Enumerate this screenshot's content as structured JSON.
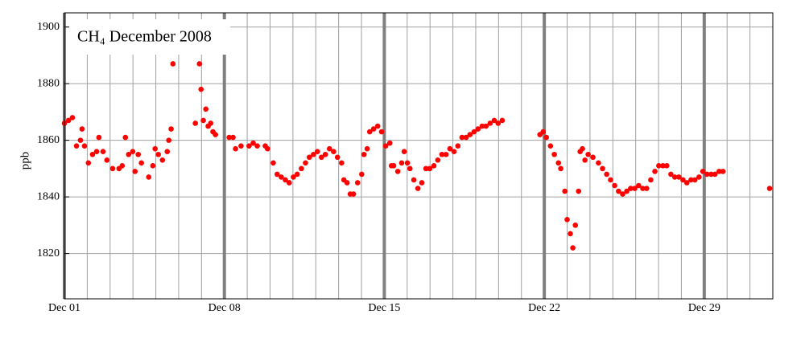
{
  "chart_data": {
    "type": "scatter",
    "title": "CH₄ December 2008",
    "ylabel": "ppb",
    "color": "#ff0000",
    "grid": true,
    "xlim": [
      1,
      32
    ],
    "xticks": [
      {
        "value": 1,
        "label": "Dec 01"
      },
      {
        "value": 8,
        "label": "Dec 08"
      },
      {
        "value": 15,
        "label": "Dec 15"
      },
      {
        "value": 22,
        "label": "Dec 22"
      },
      {
        "value": 29,
        "label": "Dec 29"
      }
    ],
    "ylim": [
      1804,
      1905
    ],
    "yticks": [
      1820,
      1840,
      1860,
      1880,
      1900
    ],
    "x": [
      1.0,
      1.18,
      1.35,
      1.53,
      1.7,
      1.77,
      1.88,
      2.05,
      2.23,
      2.41,
      2.51,
      2.69,
      2.86,
      3.11,
      3.39,
      3.53,
      3.67,
      3.81,
      3.99,
      4.09,
      4.23,
      4.37,
      4.69,
      4.87,
      4.97,
      5.11,
      5.29,
      5.5,
      5.57,
      5.67,
      5.75,
      6.73,
      6.91,
      6.98,
      7.08,
      7.19,
      7.29,
      7.4,
      7.5,
      7.61,
      8.21,
      8.38,
      8.49,
      8.73,
      9.08,
      9.26,
      9.44,
      9.79,
      9.89,
      10.14,
      10.31,
      10.49,
      10.67,
      10.84,
      11.02,
      11.19,
      11.37,
      11.55,
      11.72,
      11.9,
      12.07,
      12.25,
      12.42,
      12.6,
      12.78,
      12.95,
      13.13,
      13.23,
      13.37,
      13.51,
      13.65,
      13.83,
      14.01,
      14.11,
      14.25,
      14.36,
      14.53,
      14.71,
      14.88,
      15.06,
      15.24,
      15.31,
      15.41,
      15.59,
      15.76,
      15.87,
      16.01,
      16.12,
      16.29,
      16.47,
      16.64,
      16.82,
      16.99,
      17.17,
      17.34,
      17.52,
      17.7,
      17.87,
      18.05,
      18.22,
      18.4,
      18.58,
      18.75,
      18.93,
      19.1,
      19.28,
      19.45,
      19.63,
      19.81,
      19.98,
      20.16,
      21.81,
      21.95,
      22.09,
      22.27,
      22.44,
      22.62,
      22.72,
      22.9,
      23.0,
      23.14,
      23.25,
      23.36,
      23.5,
      23.57,
      23.67,
      23.78,
      23.92,
      24.13,
      24.37,
      24.55,
      24.73,
      24.9,
      25.08,
      25.25,
      25.43,
      25.61,
      25.78,
      25.96,
      26.13,
      26.31,
      26.48,
      26.66,
      26.84,
      27.01,
      27.19,
      27.36,
      27.54,
      27.71,
      27.89,
      28.07,
      28.24,
      28.42,
      28.59,
      28.77,
      28.94,
      29.12,
      29.3,
      29.47,
      29.65,
      29.82,
      31.86
    ],
    "values": [
      1866,
      1867,
      1868,
      1858,
      1860,
      1864,
      1858,
      1852,
      1855,
      1856,
      1861,
      1856,
      1853,
      1850,
      1850,
      1851,
      1861,
      1855,
      1856,
      1849,
      1855,
      1852,
      1847,
      1851,
      1857,
      1855,
      1853,
      1856,
      1860,
      1864,
      1887,
      1866,
      1887,
      1878,
      1867,
      1871,
      1865,
      1866,
      1863,
      1862,
      1861,
      1861,
      1857,
      1858,
      1858,
      1859,
      1858,
      1858,
      1857,
      1852,
      1848,
      1847,
      1846,
      1845,
      1847,
      1848,
      1850,
      1852,
      1854,
      1855,
      1856,
      1854,
      1855,
      1857,
      1856,
      1854,
      1852,
      1846,
      1845,
      1841,
      1841,
      1845,
      1848,
      1855,
      1857,
      1863,
      1864,
      1865,
      1863,
      1858,
      1859,
      1851,
      1851,
      1849,
      1852,
      1856,
      1852,
      1850,
      1846,
      1843,
      1845,
      1850,
      1850,
      1851,
      1853,
      1855,
      1855,
      1857,
      1856,
      1858,
      1861,
      1861,
      1862,
      1863,
      1864,
      1865,
      1865,
      1866,
      1867,
      1866,
      1867,
      1862,
      1863,
      1861,
      1858,
      1855,
      1852,
      1850,
      1842,
      1832,
      1827,
      1822,
      1830,
      1842,
      1856,
      1857,
      1853,
      1855,
      1854,
      1852,
      1850,
      1848,
      1846,
      1844,
      1842,
      1841,
      1842,
      1843,
      1843,
      1844,
      1843,
      1843,
      1846,
      1849,
      1851,
      1851,
      1851,
      1848,
      1847,
      1847,
      1846,
      1845,
      1846,
      1846,
      1847,
      1849,
      1848,
      1848,
      1848,
      1849,
      1849,
      1843
    ]
  }
}
